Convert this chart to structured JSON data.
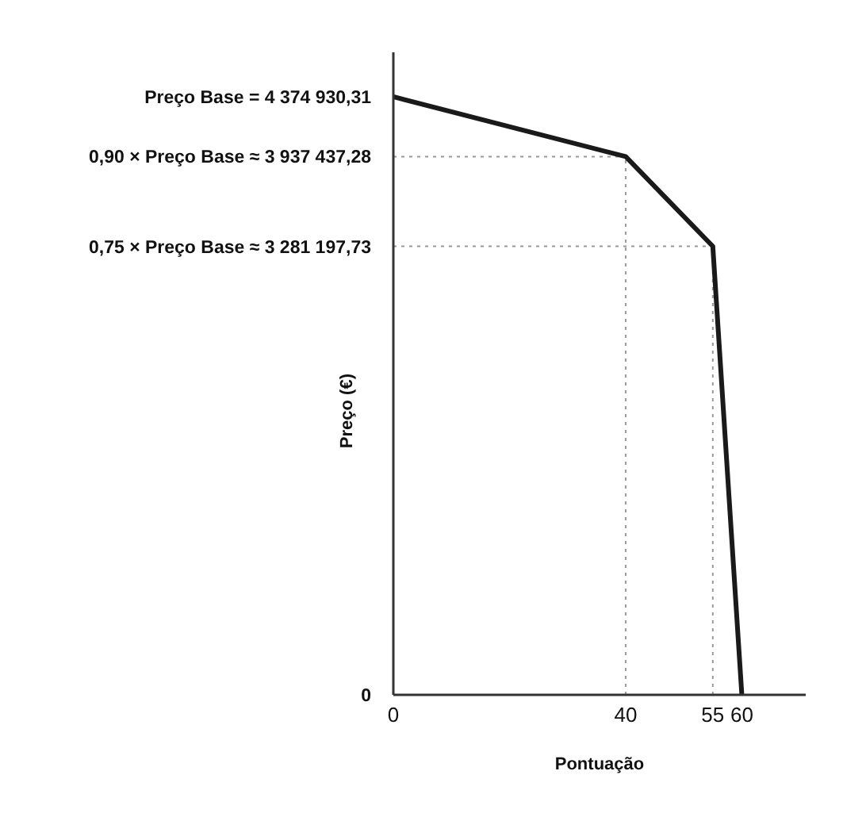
{
  "chart_data": {
    "type": "line",
    "xlabel": "Pontuação",
    "ylabel": "Preço (€)",
    "x": [
      0,
      40,
      55,
      60
    ],
    "series": [
      {
        "color": "#1a1a1a",
        "values": [
          4374930.31,
          3937437.28,
          3281197.73,
          0
        ]
      }
    ],
    "xlim": [
      0,
      71
    ],
    "ylim": [
      0,
      4700000
    ],
    "xticks": [
      0,
      40,
      55,
      60
    ],
    "yticks": [
      0,
      {
        "value": 3281197.73,
        "label": "0,75 × Preço Base ≈ 3 281 197,73"
      },
      {
        "value": 3937437.28,
        "label": "0,90 × Preço Base ≈ 3 937 437,28"
      },
      {
        "value": 4374930.31,
        "label": "Preço Base =  4 374 930,31"
      }
    ],
    "ref_lines": [
      {
        "axis": "x",
        "value": 40,
        "color": "#999999",
        "line_style": "dotted"
      },
      {
        "axis": "x",
        "value": 55,
        "color": "#999999",
        "line_style": "dotted"
      },
      {
        "axis": "y",
        "value": 3937437.28,
        "color": "#999999",
        "line_style": "dotted"
      },
      {
        "axis": "y",
        "value": 3281197.73,
        "color": "#999999",
        "line_style": "dotted"
      }
    ],
    "grid": false,
    "marker": "none",
    "line_style": "solid",
    "legend": false
  }
}
